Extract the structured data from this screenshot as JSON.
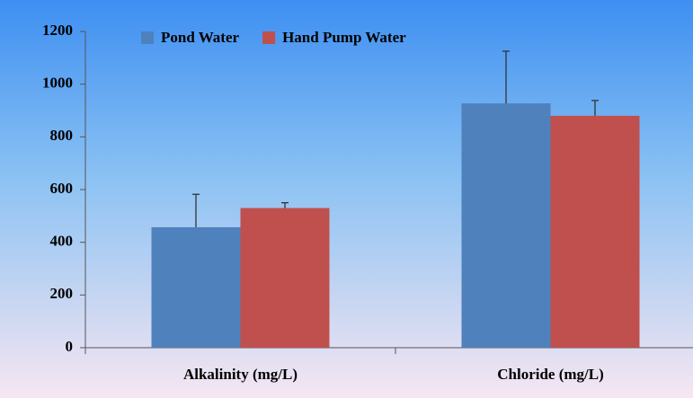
{
  "chart_data": {
    "type": "bar",
    "categories": [
      "Alkalinity (mg/L)",
      "Chloride (mg/L)"
    ],
    "series": [
      {
        "name": "Pond Water",
        "color": "#4f81bd",
        "values": [
          457,
          927
        ],
        "errors": [
          125,
          198
        ]
      },
      {
        "name": "Hand Pump Water",
        "color": "#c0504d",
        "values": [
          530,
          880
        ],
        "errors": [
          20,
          58
        ]
      }
    ],
    "ylim": [
      0,
      1200
    ],
    "yticks": [
      0,
      200,
      400,
      600,
      800,
      1000,
      1200
    ],
    "legend": "top"
  }
}
